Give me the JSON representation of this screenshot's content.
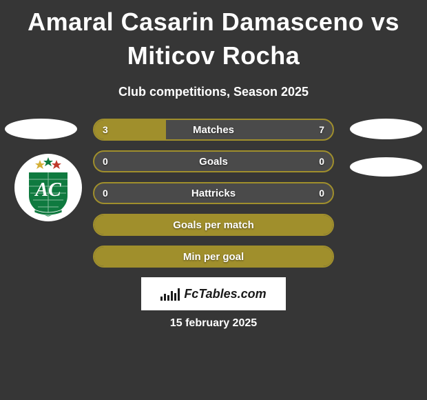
{
  "title": "Amaral Casarin Damasceno vs Miticov Rocha",
  "subtitle": "Club competitions, Season 2025",
  "date": "15 february 2025",
  "footer_brand": "FcTables.com",
  "colors": {
    "background": "#363636",
    "bar_border": "#a08f2c",
    "bar_fill": "#a08f2c",
    "bar_empty": "#4a4a4a",
    "text": "#ffffff",
    "logo_green": "#0f7a3f",
    "logo_ring": "#ffffff"
  },
  "bars": [
    {
      "label": "Matches",
      "left": "3",
      "right": "7",
      "left_pct": 30,
      "fill": "#a08f2c"
    },
    {
      "label": "Goals",
      "left": "0",
      "right": "0",
      "left_pct": 0,
      "fill": "#a08f2c"
    },
    {
      "label": "Hattricks",
      "left": "0",
      "right": "0",
      "left_pct": 0,
      "fill": "#a08f2c"
    },
    {
      "label": "Goals per match",
      "left": "",
      "right": "",
      "left_pct": 100,
      "fill": "#a08f2c"
    },
    {
      "label": "Min per goal",
      "left": "",
      "right": "",
      "left_pct": 100,
      "fill": "#a08f2c"
    }
  ],
  "club_logo": {
    "outer_bg": "#ffffff",
    "stars": [
      "#d4af37",
      "#0f7a3f",
      "#c0392b"
    ],
    "shield_bg": "#0f7a3f",
    "monogram": "AC",
    "founded_banner": "#0f7a3f"
  }
}
